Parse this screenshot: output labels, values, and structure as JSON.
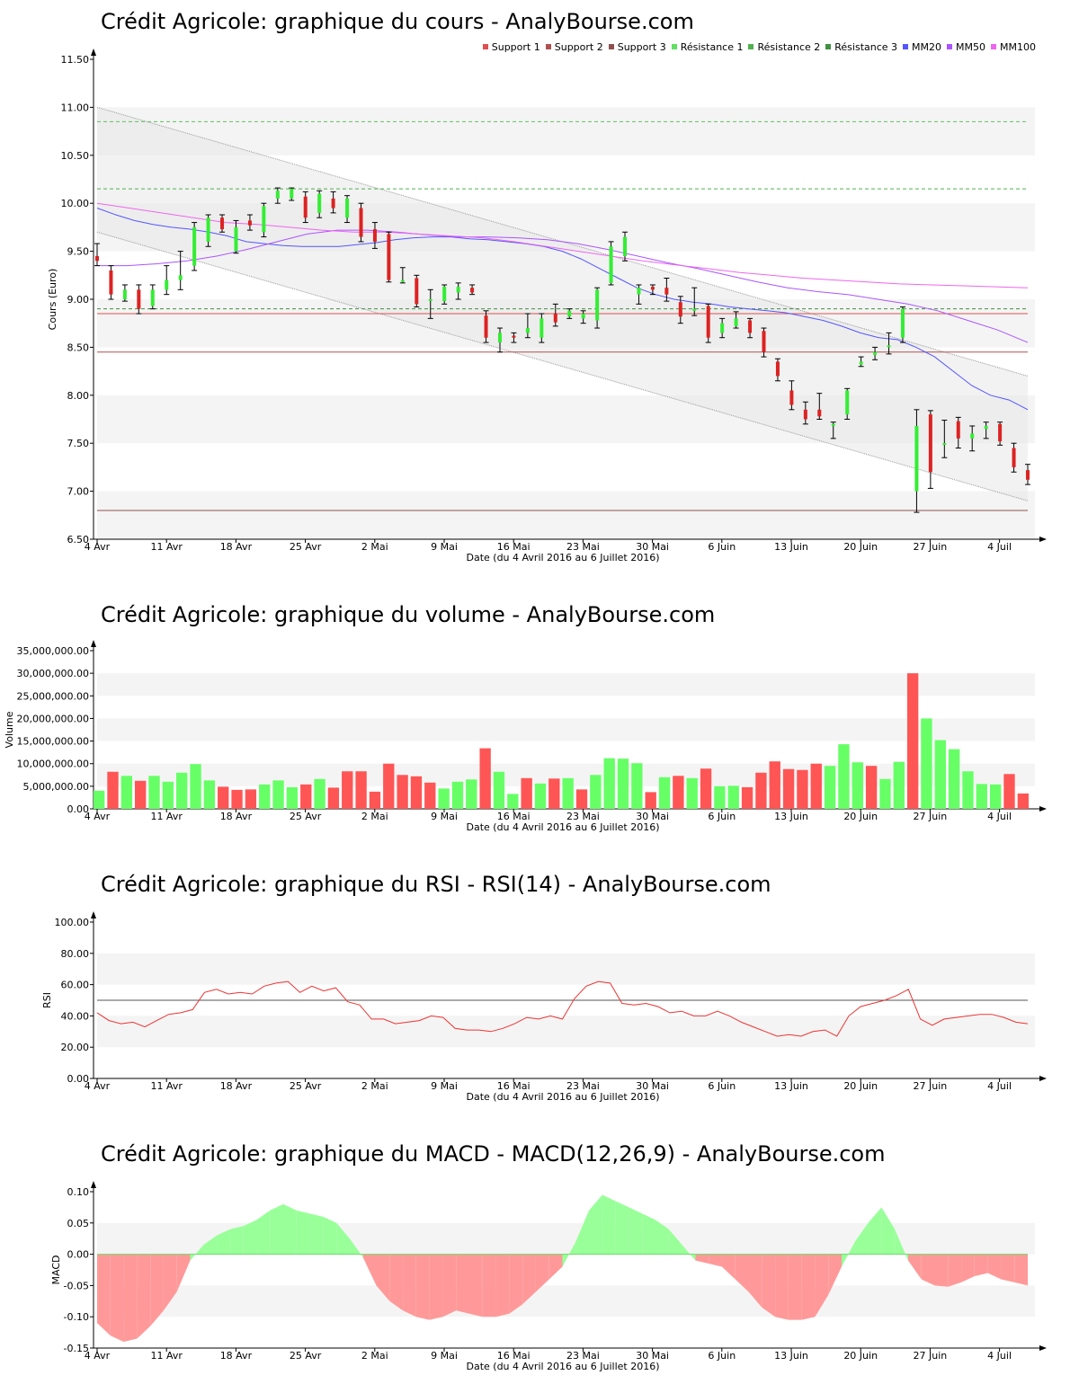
{
  "titles": {
    "price": "Crédit Agricole: graphique du cours - AnalyBourse.com",
    "volume": "Crédit Agricole: graphique du volume - AnalyBourse.com",
    "rsi": "Crédit Agricole: graphique du RSI - RSI(14) - AnalyBourse.com",
    "macd": "Crédit Agricole: graphique du MACD - MACD(12,26,9) - AnalyBourse.com"
  },
  "xlabel": "Date (du 4 Avril 2016 au 6 Juillet 2016)",
  "xticks": [
    "4 Avr",
    "11 Avr",
    "18 Avr",
    "25 Avr",
    "2 Mai",
    "9 Mai",
    "16 Mai",
    "23 Mai",
    "30 Mai",
    "6 Juin",
    "13 Juin",
    "20 Juin",
    "27 Juin",
    "4 Juil"
  ],
  "legend": [
    {
      "label": "Support 1",
      "color": "#e05050"
    },
    {
      "label": "Support 2",
      "color": "#b05050"
    },
    {
      "label": "Support 3",
      "color": "#905050"
    },
    {
      "label": "Résistance 1",
      "color": "#60e060"
    },
    {
      "label": "Résistance 2",
      "color": "#50b050"
    },
    {
      "label": "Résistance 3",
      "color": "#409040"
    },
    {
      "label": "MM20",
      "color": "#5555ff"
    },
    {
      "label": "MM50",
      "color": "#aa55ff"
    },
    {
      "label": "MM100",
      "color": "#ee66ee"
    }
  ],
  "colors": {
    "up": "#33ee33",
    "down": "#dd2222",
    "vol_up": "#66ff66",
    "vol_down": "#ff5555",
    "rsi": "#ee3333",
    "macd_pos": "#99ff99",
    "macd_neg": "#ff9999",
    "mm20": "#5555ff",
    "mm50": "#aa55ff",
    "mm100": "#ee66ee"
  },
  "chart_data": [
    {
      "type": "candlestick",
      "title": "Crédit Agricole: graphique du cours - AnalyBourse.com",
      "ylabel": "Cours (Euro)",
      "xlabel": "Date (du 4 Avril 2016 au 6 Juillet 2016)",
      "ylim": [
        6.5,
        11.6
      ],
      "yticks": [
        "6.50",
        "7.00",
        "7.50",
        "8.00",
        "8.50",
        "9.00",
        "9.50",
        "10.00",
        "10.50",
        "11.00",
        "11.50"
      ],
      "supports": [
        8.85,
        8.45,
        6.8
      ],
      "resistances": [
        10.85,
        10.15,
        8.9
      ],
      "channel_upper": [
        11.0,
        8.2
      ],
      "channel_lower": [
        9.7,
        6.9
      ],
      "candles": [
        [
          9.45,
          9.4,
          9.58,
          9.35
        ],
        [
          9.3,
          9.05,
          9.35,
          9.0
        ],
        [
          9.0,
          9.1,
          9.15,
          8.98
        ],
        [
          9.1,
          8.9,
          9.15,
          8.85
        ],
        [
          8.93,
          9.1,
          9.15,
          8.9
        ],
        [
          9.1,
          9.2,
          9.35,
          9.05
        ],
        [
          9.2,
          9.25,
          9.5,
          9.1
        ],
        [
          9.35,
          9.75,
          9.8,
          9.3
        ],
        [
          9.6,
          9.85,
          9.88,
          9.55
        ],
        [
          9.85,
          9.73,
          9.88,
          9.7
        ],
        [
          9.5,
          9.75,
          9.82,
          9.48
        ],
        [
          9.82,
          9.77,
          9.88,
          9.72
        ],
        [
          9.7,
          9.97,
          10.0,
          9.65
        ],
        [
          10.05,
          10.13,
          10.16,
          10.0
        ],
        [
          10.05,
          10.15,
          10.16,
          10.03
        ],
        [
          10.07,
          9.85,
          10.12,
          9.8
        ],
        [
          9.9,
          10.1,
          10.13,
          9.85
        ],
        [
          10.05,
          9.95,
          10.12,
          9.9
        ],
        [
          9.85,
          10.05,
          10.08,
          9.8
        ],
        [
          9.95,
          9.65,
          10.0,
          9.6
        ],
        [
          9.73,
          9.6,
          9.8,
          9.53
        ],
        [
          9.68,
          9.2,
          9.7,
          9.18
        ],
        [
          9.2,
          9.2,
          9.33,
          9.17
        ],
        [
          9.22,
          8.95,
          9.25,
          8.92
        ],
        [
          9.0,
          9.0,
          9.1,
          8.8
        ],
        [
          8.98,
          9.13,
          9.15,
          8.95
        ],
        [
          9.07,
          9.13,
          9.17,
          9.0
        ],
        [
          9.12,
          9.07,
          9.15,
          9.05
        ],
        [
          8.83,
          8.6,
          8.88,
          8.55
        ],
        [
          8.55,
          8.65,
          8.7,
          8.45
        ],
        [
          8.62,
          8.6,
          8.65,
          8.55
        ],
        [
          8.65,
          8.7,
          8.85,
          8.6
        ],
        [
          8.6,
          8.8,
          8.85,
          8.55
        ],
        [
          8.85,
          8.76,
          8.95,
          8.72
        ],
        [
          8.82,
          8.88,
          8.9,
          8.8
        ],
        [
          8.8,
          8.85,
          8.88,
          8.75
        ],
        [
          8.78,
          9.1,
          9.12,
          8.7
        ],
        [
          9.17,
          9.55,
          9.6,
          9.15
        ],
        [
          9.45,
          9.65,
          9.7,
          9.4
        ],
        [
          9.05,
          9.12,
          9.15,
          8.95
        ],
        [
          9.13,
          9.1,
          9.15,
          9.05
        ],
        [
          9.12,
          9.05,
          9.22,
          8.98
        ],
        [
          8.97,
          8.82,
          9.03,
          8.75
        ],
        [
          8.88,
          8.9,
          9.12,
          8.83
        ],
        [
          8.93,
          8.6,
          8.95,
          8.55
        ],
        [
          8.65,
          8.75,
          8.8,
          8.6
        ],
        [
          8.72,
          8.8,
          8.87,
          8.7
        ],
        [
          8.78,
          8.65,
          8.8,
          8.6
        ],
        [
          8.67,
          8.45,
          8.7,
          8.4
        ],
        [
          8.35,
          8.2,
          8.38,
          8.15
        ],
        [
          8.05,
          7.9,
          8.15,
          7.85
        ],
        [
          7.85,
          7.75,
          7.93,
          7.7
        ],
        [
          7.85,
          7.78,
          8.02,
          7.75
        ],
        [
          7.68,
          7.7,
          7.72,
          7.55
        ],
        [
          7.8,
          8.05,
          8.07,
          7.75
        ],
        [
          8.32,
          8.35,
          8.4,
          8.3
        ],
        [
          8.42,
          8.45,
          8.5,
          8.37
        ],
        [
          8.5,
          8.52,
          8.65,
          8.43
        ],
        [
          8.6,
          8.9,
          8.92,
          8.55
        ],
        [
          7.0,
          7.68,
          7.85,
          6.78
        ],
        [
          7.8,
          7.2,
          7.84,
          7.03
        ],
        [
          7.5,
          7.5,
          7.74,
          7.35
        ],
        [
          7.73,
          7.55,
          7.77,
          7.45
        ],
        [
          7.55,
          7.6,
          7.68,
          7.42
        ],
        [
          7.65,
          7.68,
          7.72,
          7.55
        ],
        [
          7.7,
          7.52,
          7.72,
          7.48
        ],
        [
          7.45,
          7.25,
          7.5,
          7.2
        ],
        [
          7.22,
          7.12,
          7.28,
          7.07
        ]
      ],
      "series": [
        {
          "name": "MM20",
          "values": [
            9.95,
            9.88,
            9.82,
            9.78,
            9.75,
            9.73,
            9.7,
            9.66,
            9.6,
            9.58,
            9.56,
            9.55,
            9.55,
            9.55,
            9.57,
            9.59,
            9.62,
            9.64,
            9.65,
            9.65,
            9.63,
            9.62,
            9.6,
            9.58,
            9.55,
            9.5,
            9.42,
            9.32,
            9.22,
            9.12,
            9.05,
            9.0,
            8.97,
            8.95,
            8.92,
            8.9,
            8.88,
            8.86,
            8.82,
            8.78,
            8.72,
            8.65,
            8.6,
            8.58,
            8.5,
            8.4,
            8.25,
            8.1,
            8.0,
            7.95,
            7.85
          ]
        },
        {
          "name": "MM50",
          "values": [
            9.35,
            9.35,
            9.37,
            9.4,
            9.45,
            9.52,
            9.6,
            9.68,
            9.72,
            9.72,
            9.7,
            9.67,
            9.65,
            9.65,
            9.64,
            9.62,
            9.58,
            9.52,
            9.45,
            9.38,
            9.32,
            9.25,
            9.18,
            9.12,
            9.08,
            9.05,
            9.0,
            8.95,
            8.88,
            8.78,
            8.68,
            8.55
          ]
        },
        {
          "name": "MM100",
          "values": [
            10.0,
            9.95,
            9.9,
            9.85,
            9.8,
            9.78,
            9.75,
            9.72,
            9.7,
            9.7,
            9.68,
            9.66,
            9.64,
            9.6,
            9.55,
            9.5,
            9.45,
            9.4,
            9.36,
            9.32,
            9.28,
            9.25,
            9.22,
            9.2,
            9.18,
            9.16,
            9.15,
            9.14,
            9.13,
            9.12
          ]
        }
      ]
    },
    {
      "type": "bar",
      "title": "Crédit Agricole: graphique du volume - AnalyBourse.com",
      "ylabel": "Volume",
      "ylim": [
        0,
        36000000
      ],
      "yticks": [
        "0.00",
        "5,000,000.00",
        "10,000,000.00",
        "15,000,000.00",
        "20,000,000.00",
        "25,000,000.00",
        "30,000,000.00",
        "35,000,000.00"
      ],
      "values": [
        4000000,
        8200000,
        7300000,
        6200000,
        7300000,
        6000000,
        8000000,
        9900000,
        6300000,
        4900000,
        4200000,
        4300000,
        5400000,
        6300000,
        4800000,
        5400000,
        6600000,
        4700000,
        8300000,
        8300000,
        3800000,
        10000000,
        7500000,
        7200000,
        5800000,
        4500000,
        6000000,
        6500000,
        13400000,
        8200000,
        3300000,
        6800000,
        5600000,
        6700000,
        6800000,
        4300000,
        7500000,
        11200000,
        11100000,
        10100000,
        3700000,
        7000000,
        7300000,
        6800000,
        8900000,
        5000000,
        5100000,
        4800000,
        8000000,
        10500000,
        8800000,
        8600000,
        10000000,
        9500000,
        14300000,
        10300000,
        9500000,
        6600000,
        10400000,
        30000000,
        20000000,
        15200000,
        13200000,
        8300000,
        5500000,
        5400000,
        7700000,
        3400000
      ]
    },
    {
      "type": "line",
      "title": "Crédit Agricole: graphique du RSI - RSI(14) - AnalyBourse.com",
      "ylabel": "RSI",
      "ylim": [
        0,
        100
      ],
      "yticks": [
        "0.00",
        "20.00",
        "40.00",
        "60.00",
        "80.00",
        "100.00"
      ],
      "reference_line": 50,
      "series": [
        {
          "values": [
            42,
            37,
            35,
            36,
            33,
            37,
            41,
            42,
            44,
            55,
            57,
            54,
            55,
            54,
            59,
            61,
            62,
            55,
            59,
            56,
            58,
            49,
            47,
            38,
            38,
            35,
            36,
            37,
            40,
            39,
            32,
            31,
            31,
            30,
            32,
            35,
            39,
            38,
            40,
            38,
            51,
            59,
            62,
            61,
            48,
            47,
            48,
            46,
            42,
            43,
            40,
            40,
            43,
            40,
            36,
            33,
            30,
            27,
            28,
            27,
            30,
            31,
            27,
            40,
            46,
            48,
            50,
            53,
            57,
            38,
            34,
            38,
            39,
            40,
            41,
            41,
            39,
            36,
            35
          ]
        }
      ]
    },
    {
      "type": "area",
      "title": "Crédit Agricole: graphique du MACD - MACD(12,26,9) - AnalyBourse.com",
      "ylabel": "MACD",
      "ylim": [
        -0.15,
        0.11
      ],
      "yticks": [
        "-0.15",
        "-0.10",
        "-0.05",
        "0.00",
        "0.05",
        "0.10"
      ],
      "series": [
        {
          "values": [
            -0.11,
            -0.13,
            -0.14,
            -0.135,
            -0.115,
            -0.09,
            -0.06,
            -0.01,
            0.015,
            0.03,
            0.04,
            0.045,
            0.055,
            0.07,
            0.08,
            0.07,
            0.065,
            0.06,
            0.05,
            0.025,
            -0.005,
            -0.05,
            -0.075,
            -0.09,
            -0.1,
            -0.105,
            -0.1,
            -0.09,
            -0.095,
            -0.1,
            -0.1,
            -0.095,
            -0.08,
            -0.06,
            -0.04,
            -0.02,
            0.02,
            0.07,
            0.095,
            0.085,
            0.075,
            0.065,
            0.055,
            0.04,
            0.015,
            -0.01,
            -0.015,
            -0.02,
            -0.04,
            -0.06,
            -0.085,
            -0.1,
            -0.105,
            -0.105,
            -0.1,
            -0.065,
            -0.02,
            0.02,
            0.05,
            0.075,
            0.04,
            -0.01,
            -0.04,
            -0.05,
            -0.052,
            -0.045,
            -0.035,
            -0.03,
            -0.04,
            -0.045,
            -0.05
          ]
        }
      ]
    }
  ]
}
